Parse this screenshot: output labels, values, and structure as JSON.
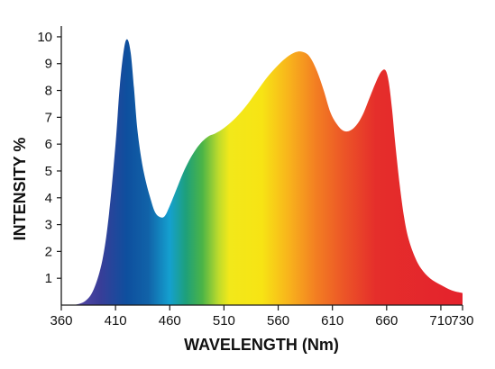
{
  "chart_data": {
    "type": "area",
    "xlabel": "WAVELENGTH (Nm)",
    "ylabel": "INTENSITY %",
    "xlim": [
      360,
      730
    ],
    "ylim": [
      0,
      10.4
    ],
    "x_ticks": [
      360,
      410,
      460,
      510,
      560,
      610,
      660,
      710,
      730
    ],
    "y_ticks": [
      1,
      2,
      3,
      4,
      5,
      6,
      7,
      8,
      9,
      10
    ],
    "grid": false,
    "fill": "visible-spectrum gradient",
    "series": [
      {
        "x": [
          372,
          382,
          390,
          398,
          404,
          410,
          414,
          418,
          421,
          424,
          427,
          430,
          434,
          438,
          442,
          446,
          450,
          455,
          460,
          466,
          472,
          478,
          484,
          490,
          496,
          502,
          510,
          520,
          530,
          540,
          550,
          560,
          570,
          578,
          585,
          590,
          596,
          602,
          608,
          614,
          620,
          626,
          632,
          638,
          644,
          650,
          655,
          659,
          662,
          665,
          668,
          672,
          676,
          680,
          686,
          692,
          700,
          710,
          720,
          730
        ],
        "values": [
          0.0,
          0.15,
          0.6,
          1.7,
          3.4,
          6.0,
          8.2,
          9.6,
          9.9,
          9.4,
          8.1,
          6.6,
          5.4,
          4.6,
          4.0,
          3.5,
          3.3,
          3.3,
          3.7,
          4.3,
          4.9,
          5.4,
          5.8,
          6.1,
          6.3,
          6.4,
          6.6,
          6.95,
          7.4,
          7.95,
          8.5,
          8.95,
          9.3,
          9.45,
          9.4,
          9.2,
          8.7,
          8.0,
          7.2,
          6.75,
          6.5,
          6.5,
          6.7,
          7.1,
          7.7,
          8.3,
          8.7,
          8.75,
          8.3,
          7.3,
          6.0,
          4.5,
          3.3,
          2.5,
          1.8,
          1.35,
          1.0,
          0.75,
          0.55,
          0.45
        ]
      }
    ],
    "spectrum_colors": [
      {
        "nm": 372,
        "color": "#5a4aa8"
      },
      {
        "nm": 395,
        "color": "#3a3d98"
      },
      {
        "nm": 420,
        "color": "#0e4f9e"
      },
      {
        "nm": 440,
        "color": "#1162a8"
      },
      {
        "nm": 460,
        "color": "#14a0cf"
      },
      {
        "nm": 475,
        "color": "#1ea07a"
      },
      {
        "nm": 490,
        "color": "#4bb447"
      },
      {
        "nm": 505,
        "color": "#bedb2c"
      },
      {
        "nm": 515,
        "color": "#f2e81a"
      },
      {
        "nm": 545,
        "color": "#f7e414"
      },
      {
        "nm": 570,
        "color": "#f8b31c"
      },
      {
        "nm": 595,
        "color": "#f37e22"
      },
      {
        "nm": 620,
        "color": "#ec5627"
      },
      {
        "nm": 650,
        "color": "#e52e2b"
      },
      {
        "nm": 730,
        "color": "#e4222c"
      }
    ],
    "axis_color": "#1a1a1a"
  }
}
